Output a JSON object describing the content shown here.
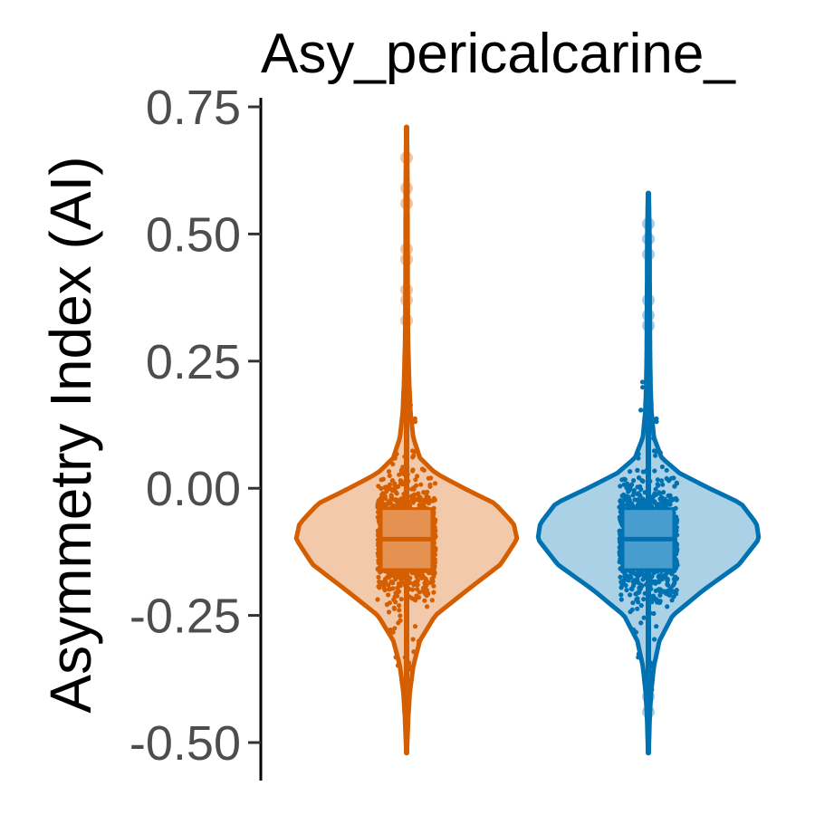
{
  "chart_data": {
    "type": "violin",
    "title": "Asy_pericalcarine_",
    "xlabel": "",
    "ylabel": "Asymmetry Index (AI)",
    "ylim": [
      -0.53,
      0.77
    ],
    "yticks": [
      -0.5,
      -0.25,
      0.0,
      0.25,
      0.5,
      0.75
    ],
    "ytick_labels": [
      "-0.50",
      "-0.25",
      "0.00",
      "0.25",
      "0.50",
      "0.75"
    ],
    "grid": false,
    "legend": "none",
    "series": [
      {
        "color": "#D55E00",
        "fill": "#F2C9AA",
        "box_fill": "#E69455",
        "min": -0.52,
        "max": 0.71,
        "q1": -0.16,
        "median": -0.1,
        "q3": -0.04,
        "outliers": [
          0.65,
          0.59,
          0.56,
          0.47,
          0.45,
          0.39,
          0.37,
          0.33
        ],
        "density": [
          [
            -0.52,
            0.003
          ],
          [
            -0.45,
            0.015
          ],
          [
            -0.4,
            0.03
          ],
          [
            -0.35,
            0.06
          ],
          [
            -0.3,
            0.12
          ],
          [
            -0.25,
            0.26
          ],
          [
            -0.2,
            0.55
          ],
          [
            -0.15,
            0.85
          ],
          [
            -0.1,
            1.0
          ],
          [
            -0.07,
            0.97
          ],
          [
            -0.03,
            0.8
          ],
          [
            0.0,
            0.52
          ],
          [
            0.03,
            0.26
          ],
          [
            0.06,
            0.12
          ],
          [
            0.1,
            0.06
          ],
          [
            0.15,
            0.035
          ],
          [
            0.2,
            0.025
          ],
          [
            0.25,
            0.018
          ],
          [
            0.3,
            0.013
          ],
          [
            0.4,
            0.01
          ],
          [
            0.5,
            0.009
          ],
          [
            0.6,
            0.008
          ],
          [
            0.71,
            0.003
          ]
        ]
      },
      {
        "color": "#0072B2",
        "fill": "#ABD1E7",
        "box_fill": "#4A9FD0",
        "min": -0.52,
        "max": 0.58,
        "q1": -0.16,
        "median": -0.1,
        "q3": -0.04,
        "outliers": [
          0.52,
          0.49,
          0.46,
          0.37,
          0.34,
          0.32,
          -0.41,
          -0.44
        ],
        "density": [
          [
            -0.52,
            0.003
          ],
          [
            -0.45,
            0.012
          ],
          [
            -0.4,
            0.025
          ],
          [
            -0.35,
            0.05
          ],
          [
            -0.3,
            0.1
          ],
          [
            -0.25,
            0.22
          ],
          [
            -0.2,
            0.5
          ],
          [
            -0.15,
            0.82
          ],
          [
            -0.1,
            1.0
          ],
          [
            -0.07,
            0.98
          ],
          [
            -0.03,
            0.84
          ],
          [
            0.0,
            0.55
          ],
          [
            0.03,
            0.28
          ],
          [
            0.06,
            0.12
          ],
          [
            0.1,
            0.05
          ],
          [
            0.15,
            0.028
          ],
          [
            0.2,
            0.02
          ],
          [
            0.25,
            0.016
          ],
          [
            0.3,
            0.014
          ],
          [
            0.4,
            0.012
          ],
          [
            0.5,
            0.01
          ],
          [
            0.58,
            0.004
          ]
        ]
      }
    ]
  }
}
